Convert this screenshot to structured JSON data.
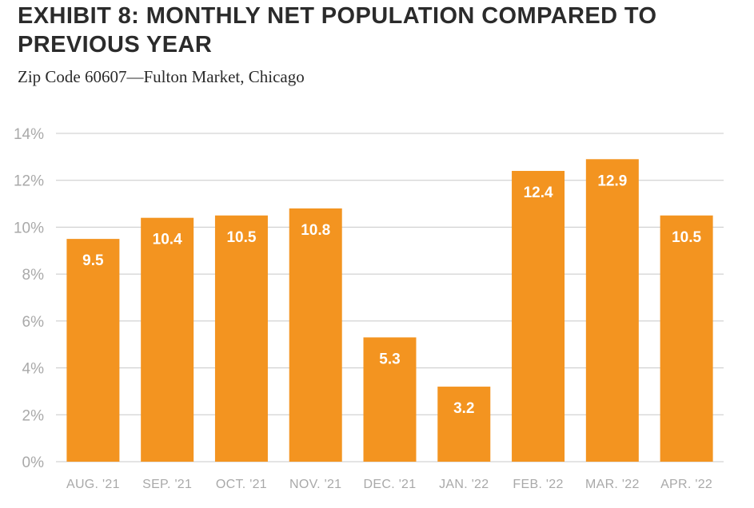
{
  "title": "EXHIBIT 8: MONTHLY NET POPULATION COMPARED TO PREVIOUS YEAR",
  "subtitle": "Zip Code 60607—Fulton Market, Chicago",
  "chart_data": {
    "type": "bar",
    "title": "EXHIBIT 8: MONTHLY NET POPULATION COMPARED TO PREVIOUS YEAR",
    "subtitle": "Zip Code 60607—Fulton Market, Chicago",
    "categories": [
      "AUG. '21",
      "SEP. '21",
      "OCT. '21",
      "NOV. '21",
      "DEC. '21",
      "JAN. '22",
      "FEB. '22",
      "MAR. '22",
      "APR. '22"
    ],
    "values": [
      9.5,
      10.4,
      10.5,
      10.8,
      5.3,
      3.2,
      12.4,
      12.9,
      10.5
    ],
    "data_labels": [
      "9.5",
      "10.4",
      "10.5",
      "10.8",
      "5.3",
      "3.2",
      "12.4",
      "12.9",
      "10.5"
    ],
    "ylim": [
      0,
      14
    ],
    "yticks": [
      0,
      2,
      4,
      6,
      8,
      10,
      12,
      14
    ],
    "ytick_labels": [
      "0%",
      "2%",
      "4%",
      "6%",
      "8%",
      "10%",
      "12%",
      "14%"
    ],
    "grid": true,
    "bar_color": "#f39420",
    "grid_color": "#c8c8c8",
    "axis_text_color": "#a9a9a9"
  }
}
